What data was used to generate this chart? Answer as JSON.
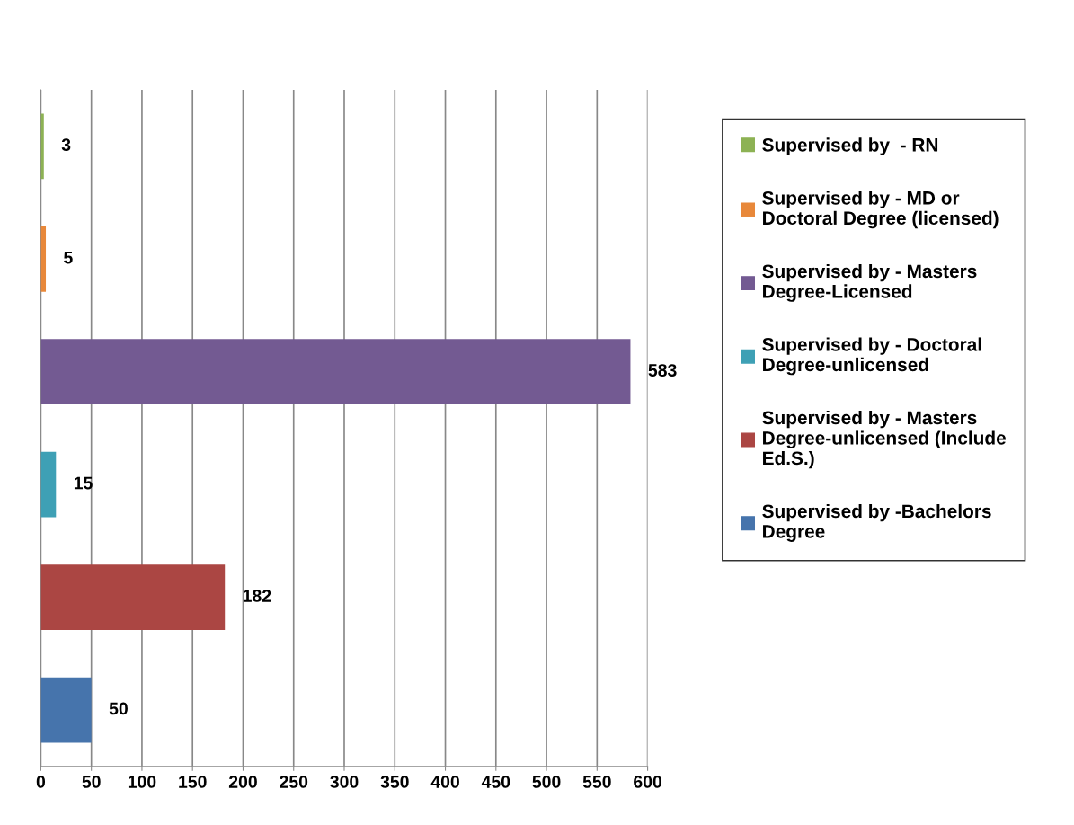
{
  "chart_data": {
    "type": "bar",
    "orientation": "horizontal",
    "categories": [
      null,
      null,
      null,
      null,
      null,
      null
    ],
    "series": [
      {
        "name": "Supervised by  - RN",
        "color": "#8db254",
        "values": [
          3,
          null,
          null,
          null,
          null,
          null
        ]
      },
      {
        "name": "Supervised by - MD or Doctoral Degree (licensed)",
        "color": "#e8883a",
        "values": [
          null,
          5,
          null,
          null,
          null,
          null
        ]
      },
      {
        "name": "Supervised by - Masters Degree-Licensed",
        "color": "#735a92",
        "values": [
          null,
          null,
          583,
          null,
          null,
          null
        ]
      },
      {
        "name": "Supervised by - Doctoral Degree-unlicensed",
        "color": "#3ea0b5",
        "values": [
          null,
          null,
          null,
          15,
          null,
          null
        ]
      },
      {
        "name": "Supervised by - Masters Degree-unlicensed (Include Ed.S.)",
        "color": "#ab4643",
        "values": [
          null,
          null,
          null,
          null,
          182,
          null
        ]
      },
      {
        "name": "Supervised by -Bachelors Degree",
        "color": "#4674ac",
        "values": [
          null,
          null,
          null,
          null,
          null,
          50
        ]
      }
    ],
    "xlim": [
      0,
      600
    ],
    "xticks": [
      0,
      50,
      100,
      150,
      200,
      250,
      300,
      350,
      400,
      450,
      500,
      550,
      600
    ],
    "grid": "x",
    "legend": "right",
    "data_labels": true,
    "tick_labels": "x"
  }
}
